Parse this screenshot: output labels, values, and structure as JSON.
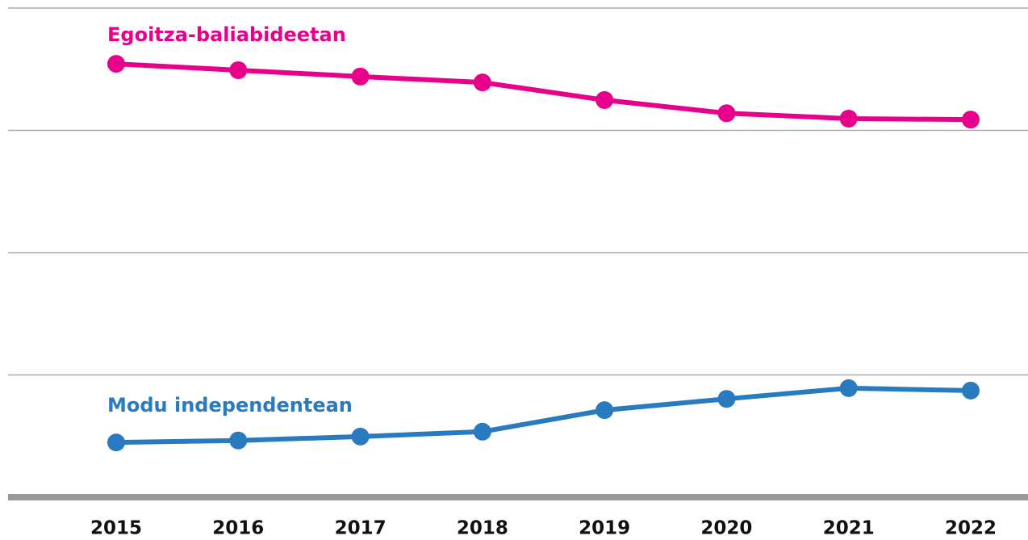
{
  "chart_data": {
    "type": "line",
    "categories": [
      "2015",
      "2016",
      "2017",
      "2018",
      "2019",
      "2020",
      "2021",
      "2022"
    ],
    "series": [
      {
        "name": "Egoitza-baliabideetan",
        "color": "#e6008a",
        "values": [
          88.6,
          87.3,
          86.0,
          84.8,
          81.2,
          78.5,
          77.4,
          77.2
        ]
      },
      {
        "name": "Modu independentean",
        "color": "#2a7abf",
        "values": [
          11.2,
          11.6,
          12.4,
          13.4,
          17.8,
          20.1,
          22.3,
          21.8
        ]
      }
    ],
    "ylim": [
      0,
      100
    ],
    "yticks": [
      0,
      25,
      50,
      75,
      100
    ],
    "grid": true
  }
}
